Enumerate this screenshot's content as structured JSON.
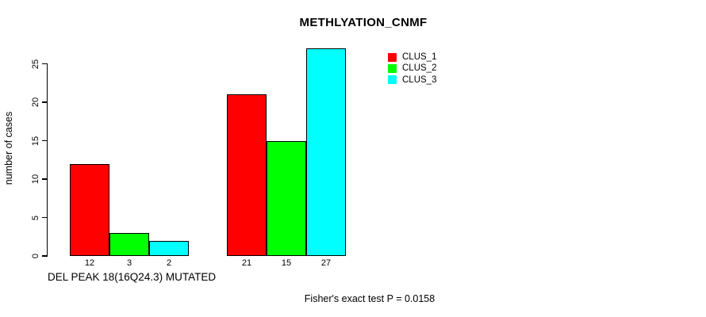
{
  "chart_data": {
    "type": "bar",
    "title": "METHLYATION_CNMF",
    "ylabel": "number of cases",
    "xlabel": "DEL PEAK 18(16Q24.3) MUTATED",
    "yticks": [
      0,
      5,
      10,
      15,
      20,
      25
    ],
    "ylim": [
      0,
      27
    ],
    "grid": false,
    "legend_position": "top-right",
    "bar_value_labels_shown": true,
    "series": [
      {
        "name": "CLUS_1",
        "color": "#ff0000",
        "values": [
          12,
          21
        ]
      },
      {
        "name": "CLUS_2",
        "color": "#00ff00",
        "values": [
          3,
          15
        ]
      },
      {
        "name": "CLUS_3",
        "color": "#00ffff",
        "values": [
          2,
          27
        ]
      }
    ],
    "annotation": "Fisher's exact test P = 0.0158"
  }
}
